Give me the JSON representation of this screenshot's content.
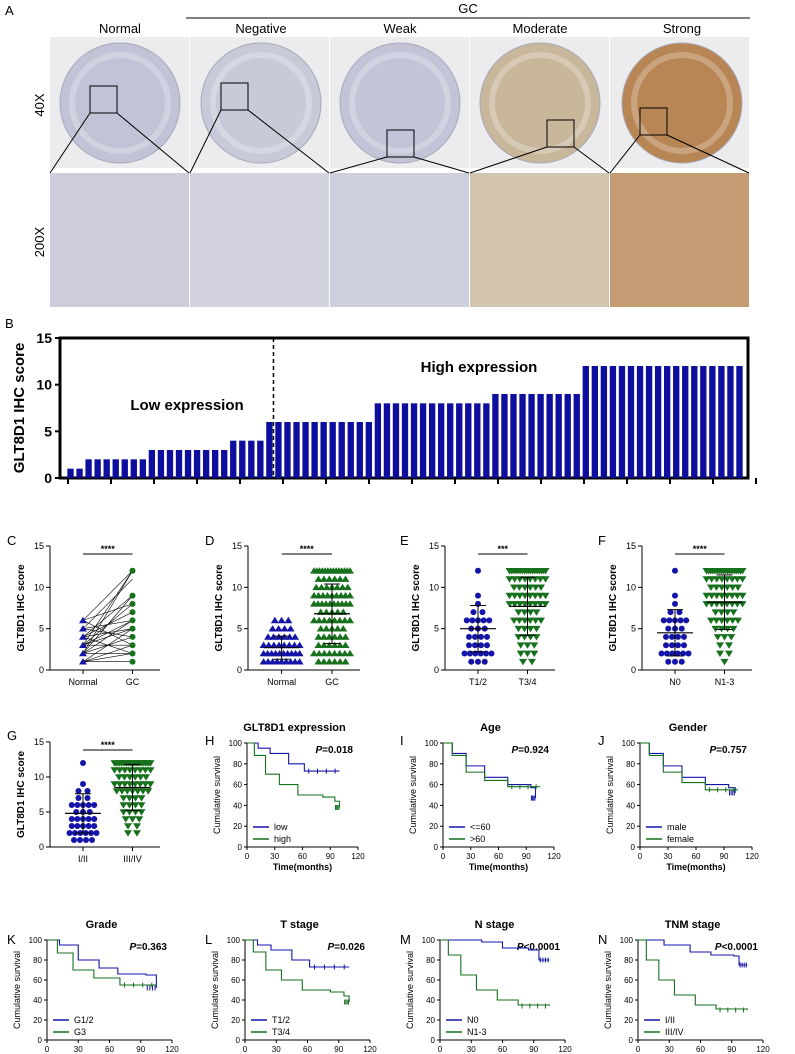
{
  "panelA": {
    "letter": "A",
    "gc_label": "GC",
    "columns": [
      "Normal",
      "Negative",
      "Weak",
      "Moderate",
      "Strong"
    ],
    "rows": [
      "40X",
      "200X"
    ],
    "tissue_colors": {
      "normal": "#c2c3d6",
      "negative": "#c8cad8",
      "weak": "#c3c4d7",
      "moderate": "#c9b79c",
      "strong": "#b88655"
    }
  },
  "panelB": {
    "letter": "B",
    "ylabel": "GLT8D1 IHC score",
    "yticks": [
      "0",
      "5",
      "10",
      "15"
    ],
    "low_label": "Low expression",
    "high_label": "High expression",
    "color": "#0d0d9e",
    "groups": [
      {
        "score": 1,
        "n": 2
      },
      {
        "score": 2,
        "n": 7
      },
      {
        "score": 3,
        "n": 9
      },
      {
        "score": 4,
        "n": 4
      },
      {
        "score": 6,
        "n": 12
      },
      {
        "score": 8,
        "n": 13
      },
      {
        "score": 9,
        "n": 10
      },
      {
        "score": 12,
        "n": 18
      }
    ],
    "cutoff_after_index": 22
  },
  "scatter_panels": [
    {
      "letter": "C",
      "ylabel": "GLT8D1 IHC score",
      "categories": [
        "Normal",
        "GC"
      ],
      "sig": "****",
      "type": "paired"
    },
    {
      "letter": "D",
      "ylabel": "GLT8D1 IHC score",
      "categories": [
        "Normal",
        "GC"
      ],
      "sig": "****",
      "type": "dot",
      "means": [
        2.7,
        6.8
      ],
      "sds": [
        1.4,
        3.6
      ]
    },
    {
      "letter": "E",
      "ylabel": "GLT8D1 IHC score",
      "categories": [
        "T1/2",
        "T3/4"
      ],
      "sig": "***",
      "type": "dot",
      "means": [
        5.0,
        7.7
      ],
      "sds": [
        2.8,
        3.5
      ]
    },
    {
      "letter": "F",
      "ylabel": "GLT8D1 IHC score",
      "categories": [
        "N0",
        "N1-3"
      ],
      "sig": "****",
      "type": "dot",
      "means": [
        4.5,
        8.2
      ],
      "sds": [
        2.8,
        3.3
      ]
    },
    {
      "letter": "G",
      "ylabel": "GLT8D1 IHC score",
      "categories": [
        "I/II",
        "III/IV"
      ],
      "sig": "****",
      "type": "dot",
      "means": [
        4.8,
        8.5
      ],
      "sds": [
        2.8,
        3.3
      ]
    }
  ],
  "survival_panels": [
    {
      "letter": "H",
      "title": "GLT8D1 expression",
      "p": "=0.018",
      "legend": [
        "low",
        "high"
      ],
      "curves": [
        [
          [
            0,
            100
          ],
          [
            12,
            95
          ],
          [
            25,
            90
          ],
          [
            45,
            80
          ],
          [
            62,
            73
          ],
          [
            100,
            73
          ]
        ],
        [
          [
            0,
            100
          ],
          [
            8,
            88
          ],
          [
            20,
            70
          ],
          [
            35,
            60
          ],
          [
            55,
            50
          ],
          [
            82,
            48
          ],
          [
            95,
            44
          ],
          [
            100,
            38
          ]
        ]
      ]
    },
    {
      "letter": "I",
      "title": "Age",
      "p": "=0.924",
      "legend": [
        "<=60",
        ">60"
      ],
      "curves": [
        [
          [
            0,
            100
          ],
          [
            10,
            90
          ],
          [
            25,
            78
          ],
          [
            45,
            67
          ],
          [
            70,
            60
          ],
          [
            95,
            57
          ],
          [
            100,
            47
          ]
        ],
        [
          [
            0,
            100
          ],
          [
            10,
            88
          ],
          [
            25,
            72
          ],
          [
            45,
            64
          ],
          [
            70,
            58
          ],
          [
            105,
            58
          ]
        ]
      ]
    },
    {
      "letter": "J",
      "title": "Gender",
      "p": "=0.757",
      "legend": [
        "male",
        "female"
      ],
      "curves": [
        [
          [
            0,
            100
          ],
          [
            10,
            90
          ],
          [
            25,
            78
          ],
          [
            45,
            67
          ],
          [
            70,
            60
          ],
          [
            95,
            57
          ],
          [
            102,
            52
          ]
        ],
        [
          [
            0,
            100
          ],
          [
            10,
            88
          ],
          [
            25,
            72
          ],
          [
            45,
            62
          ],
          [
            70,
            55
          ],
          [
            105,
            55
          ]
        ]
      ]
    },
    {
      "letter": "K",
      "title": "Grade",
      "p": "=0.363",
      "legend": [
        "G1/2",
        "G3"
      ],
      "curves": [
        [
          [
            0,
            100
          ],
          [
            12,
            95
          ],
          [
            30,
            80
          ],
          [
            50,
            72
          ],
          [
            68,
            66
          ],
          [
            95,
            65
          ],
          [
            105,
            52
          ]
        ],
        [
          [
            0,
            100
          ],
          [
            10,
            87
          ],
          [
            25,
            70
          ],
          [
            45,
            62
          ],
          [
            70,
            55
          ],
          [
            105,
            55
          ]
        ]
      ]
    },
    {
      "letter": "L",
      "title": "T stage",
      "p": "=0.026",
      "legend": [
        "T1/2",
        "T3/4"
      ],
      "curves": [
        [
          [
            0,
            100
          ],
          [
            12,
            95
          ],
          [
            25,
            90
          ],
          [
            45,
            80
          ],
          [
            62,
            73
          ],
          [
            100,
            73
          ]
        ],
        [
          [
            0,
            100
          ],
          [
            8,
            88
          ],
          [
            20,
            70
          ],
          [
            35,
            60
          ],
          [
            55,
            50
          ],
          [
            82,
            48
          ],
          [
            95,
            44
          ],
          [
            100,
            38
          ]
        ]
      ]
    },
    {
      "letter": "M",
      "title": "N stage",
      "p": "<0.0001",
      "legend": [
        "N0",
        "N1-3"
      ],
      "curves": [
        [
          [
            0,
            100
          ],
          [
            40,
            98
          ],
          [
            60,
            92
          ],
          [
            85,
            90
          ],
          [
            95,
            80
          ],
          [
            105,
            80
          ]
        ],
        [
          [
            0,
            100
          ],
          [
            8,
            85
          ],
          [
            20,
            65
          ],
          [
            35,
            50
          ],
          [
            55,
            40
          ],
          [
            75,
            35
          ],
          [
            105,
            34
          ]
        ]
      ]
    },
    {
      "letter": "N",
      "title": "TNM stage",
      "p": "<0.0001",
      "legend": [
        "I/II",
        "III/IV"
      ],
      "curves": [
        [
          [
            0,
            100
          ],
          [
            25,
            95
          ],
          [
            50,
            88
          ],
          [
            70,
            85
          ],
          [
            92,
            84
          ],
          [
            97,
            75
          ],
          [
            105,
            75
          ]
        ],
        [
          [
            0,
            100
          ],
          [
            8,
            80
          ],
          [
            20,
            60
          ],
          [
            35,
            45
          ],
          [
            55,
            35
          ],
          [
            75,
            31
          ],
          [
            105,
            30
          ]
        ]
      ]
    }
  ],
  "survival_axes": {
    "ylabel": "Cumulative survival",
    "xlabel": "Time(months)",
    "xticks": [
      0,
      30,
      60,
      90,
      120
    ],
    "yticks": [
      0,
      20,
      40,
      60,
      80,
      100
    ],
    "p_prefix": "P"
  },
  "colors": {
    "blue": "#1414a8",
    "green": "#16701c",
    "black": "#000000"
  }
}
